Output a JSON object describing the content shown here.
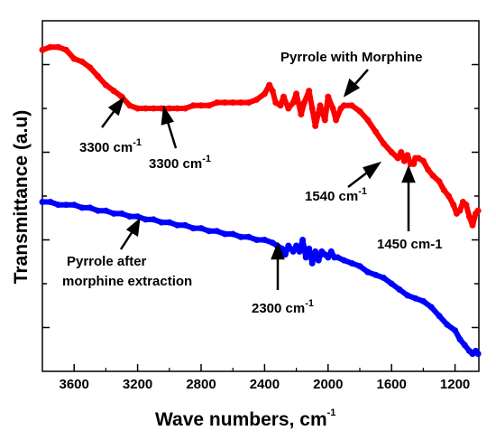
{
  "chart_data": {
    "type": "line",
    "xlabel": "Wave numbers, cm",
    "xlabel_sup": "-1",
    "ylabel": "Transmittance (a.u)",
    "xlim": [
      3800,
      1050
    ],
    "x_reversed": true,
    "x_ticks": [
      3600,
      3200,
      2800,
      2400,
      2000,
      1600,
      1200
    ],
    "y_axis_numbers_shown": false,
    "grid": false,
    "series": [
      {
        "name": "Pyrrole with Morphine",
        "color": "#ff0000",
        "x": [
          3800,
          3750,
          3700,
          3650,
          3600,
          3550,
          3500,
          3450,
          3400,
          3350,
          3300,
          3250,
          3200,
          3150,
          3100,
          3050,
          3000,
          2950,
          2900,
          2850,
          2800,
          2750,
          2700,
          2650,
          2600,
          2550,
          2500,
          2450,
          2400,
          2370,
          2350,
          2330,
          2300,
          2280,
          2250,
          2220,
          2200,
          2170,
          2150,
          2120,
          2100,
          2080,
          2050,
          2020,
          2000,
          1970,
          1950,
          1920,
          1900,
          1850,
          1800,
          1750,
          1700,
          1650,
          1600,
          1560,
          1540,
          1520,
          1500,
          1480,
          1460,
          1450,
          1430,
          1400,
          1370,
          1340,
          1300,
          1270,
          1240,
          1210,
          1190,
          1170,
          1150,
          1130,
          1110,
          1090,
          1070,
          1055
        ],
        "y": [
          90,
          91,
          91,
          90,
          87,
          86,
          84,
          81,
          78,
          76,
          74,
          71,
          70,
          70,
          70,
          70,
          70,
          70,
          70,
          71,
          71,
          71,
          72,
          72,
          72,
          72,
          72,
          73,
          75,
          78,
          76,
          72,
          71,
          74,
          70,
          72,
          75,
          68,
          72,
          76,
          70,
          64,
          71,
          66,
          74,
          70,
          66,
          70,
          71,
          71,
          69,
          66,
          62,
          58,
          55,
          53,
          55,
          52,
          54,
          51,
          51,
          53,
          53,
          52,
          49,
          47,
          45,
          42,
          40,
          37,
          34,
          35,
          38,
          37,
          33,
          30,
          34,
          35
        ]
      },
      {
        "name": "Pyrrole after morphine extraction",
        "color": "#0000ff",
        "x": [
          3800,
          3750,
          3700,
          3650,
          3600,
          3550,
          3500,
          3450,
          3400,
          3350,
          3300,
          3250,
          3200,
          3150,
          3100,
          3050,
          3000,
          2950,
          2900,
          2850,
          2800,
          2750,
          2700,
          2650,
          2600,
          2550,
          2500,
          2450,
          2400,
          2350,
          2320,
          2290,
          2270,
          2250,
          2220,
          2200,
          2180,
          2160,
          2140,
          2120,
          2100,
          2080,
          2060,
          2040,
          2020,
          2000,
          1980,
          1960,
          1940,
          1900,
          1850,
          1800,
          1750,
          1700,
          1650,
          1600,
          1550,
          1500,
          1450,
          1400,
          1350,
          1300,
          1250,
          1200,
          1170,
          1140,
          1110,
          1090,
          1070,
          1055
        ],
        "y": [
          38,
          38,
          37,
          37,
          37,
          36,
          36,
          35,
          35,
          34,
          34,
          33,
          33,
          32,
          32,
          31,
          31,
          30,
          30,
          29,
          29,
          28,
          28,
          27,
          27,
          26,
          26,
          25,
          25,
          24,
          23,
          22,
          20,
          23,
          21,
          23,
          21,
          25,
          19,
          22,
          17,
          21,
          18,
          21,
          20,
          19,
          21,
          19,
          19,
          18,
          17,
          16,
          14,
          13,
          12,
          10,
          8,
          6,
          5,
          4,
          2,
          -1,
          -4,
          -6,
          -9,
          -11,
          -13,
          -14,
          -13,
          -14
        ]
      }
    ],
    "annotations": [
      {
        "text": "3300 cm",
        "sup": "-1"
      },
      {
        "text": "3300 cm",
        "sup": "-1"
      },
      {
        "text": "Pyrrole with Morphine",
        "sup": ""
      },
      {
        "text": "1540 cm",
        "sup": "-1"
      },
      {
        "text": "1450 cm-1",
        "sup": ""
      },
      {
        "text": "Pyrrole after",
        "sup": ""
      },
      {
        "text": "morphine extraction",
        "sup": ""
      },
      {
        "text": "2300 cm",
        "sup": "-1"
      }
    ]
  }
}
